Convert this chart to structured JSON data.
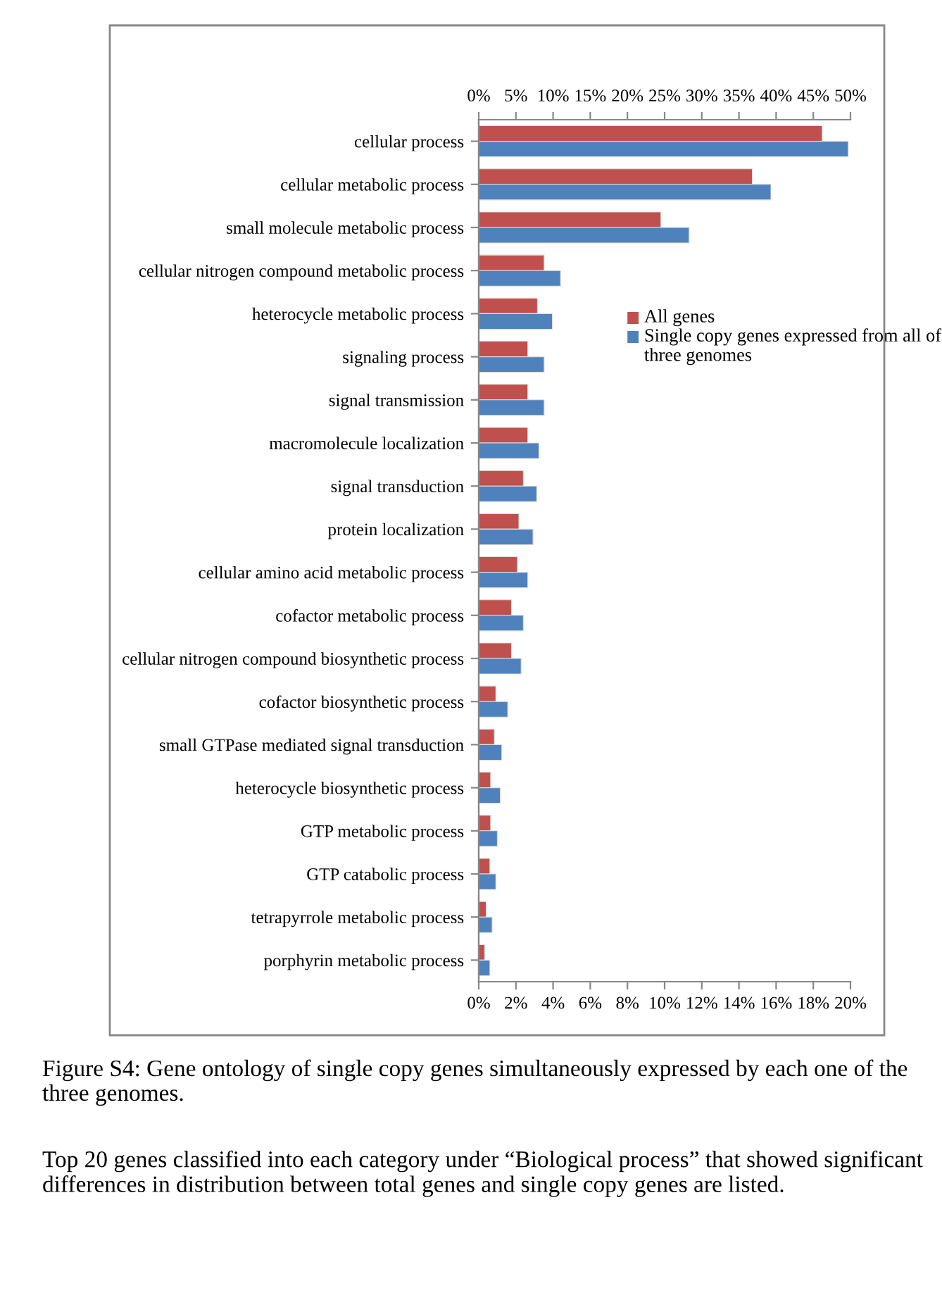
{
  "chart_data": {
    "type": "bar",
    "orientation": "horizontal",
    "categories": [
      "cellular process",
      "cellular metabolic process",
      "small molecule metabolic process",
      "cellular nitrogen compound metabolic process",
      "heterocycle metabolic process",
      "signaling process",
      "signal transmission",
      "macromolecule localization",
      "signal transduction",
      "protein localization",
      "cellular amino acid metabolic process",
      "cofactor metabolic process",
      "cellular nitrogen compound biosynthetic process",
      "cofactor biosynthetic process",
      "small GTPase mediated signal transduction",
      "heterocycle biosynthetic process",
      "GTP metabolic process",
      "GTP catabolic process",
      "tetrapyrrole metabolic process",
      "porphyrin metabolic process"
    ],
    "series": [
      {
        "name": "All genes",
        "color": "#c0504d",
        "axis": "x2",
        "values": [
          46.2,
          36.8,
          24.5,
          8.8,
          7.9,
          6.6,
          6.6,
          6.6,
          6.0,
          5.4,
          5.2,
          4.4,
          4.4,
          2.3,
          2.1,
          1.6,
          1.6,
          1.5,
          1.0,
          0.8
        ]
      },
      {
        "name": "Single copy genes expressed from all of three genomes",
        "color": "#4f81bd",
        "axis": "x2",
        "values": [
          49.7,
          39.3,
          28.3,
          11.0,
          9.9,
          8.8,
          8.8,
          8.1,
          7.8,
          7.3,
          6.6,
          6.0,
          5.7,
          3.9,
          3.1,
          2.9,
          2.5,
          2.3,
          1.8,
          1.5
        ]
      }
    ],
    "x2lim": [
      0,
      50
    ],
    "x2ticks": [
      {
        "value": 0,
        "label": "0%"
      },
      {
        "value": 5,
        "label": "5%"
      },
      {
        "value": 10,
        "label": "10%"
      },
      {
        "value": 15,
        "label": "15%"
      },
      {
        "value": 20,
        "label": "20%"
      },
      {
        "value": 25,
        "label": "25%"
      },
      {
        "value": 30,
        "label": "30%"
      },
      {
        "value": 35,
        "label": "35%"
      },
      {
        "value": 40,
        "label": "40%"
      },
      {
        "value": 45,
        "label": "45%"
      },
      {
        "value": 50,
        "label": "50%"
      }
    ],
    "xlim": [
      0,
      20
    ],
    "xticks": [
      {
        "value": 0,
        "label": "0%"
      },
      {
        "value": 2,
        "label": "2%"
      },
      {
        "value": 4,
        "label": "4%"
      },
      {
        "value": 6,
        "label": "6%"
      },
      {
        "value": 8,
        "label": "8%"
      },
      {
        "value": 10,
        "label": "10%"
      },
      {
        "value": 12,
        "label": "12%"
      },
      {
        "value": 14,
        "label": "14%"
      },
      {
        "value": 16,
        "label": "16%"
      },
      {
        "value": 18,
        "label": "18%"
      },
      {
        "value": 20,
        "label": "20%"
      }
    ],
    "grid": false,
    "legend": "top right",
    "annotations": [
      "Figure S4: Gene ontology of single copy genes simultaneously expressed by each one of the three genomes.",
      "Top 20 genes classified into each category under “Biological process” that showed significant differences in distribution between total genes and single copy genes are listed."
    ]
  }
}
